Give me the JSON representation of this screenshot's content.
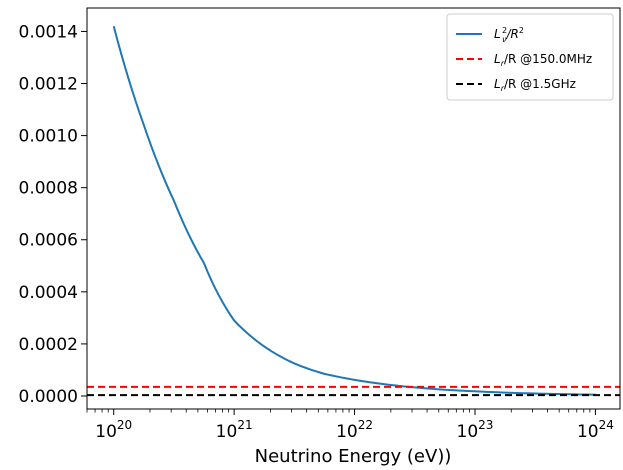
{
  "chart_data": {
    "type": "line",
    "xlabel": "Neutrino Energy (eV))",
    "ylabel": "",
    "xscale": "log",
    "xlim": [
      6e+19,
      1.6e+24
    ],
    "ylim": [
      -5e-05,
      0.00149
    ],
    "grid": false,
    "legend_position": "top-right",
    "x_ticks": [
      {
        "mantissa": "10",
        "exp": "20",
        "value": 1e+20
      },
      {
        "mantissa": "10",
        "exp": "21",
        "value": 1e+21
      },
      {
        "mantissa": "10",
        "exp": "22",
        "value": 1e+22
      },
      {
        "mantissa": "10",
        "exp": "23",
        "value": 1e+23
      },
      {
        "mantissa": "10",
        "exp": "24",
        "value": 1e+24
      }
    ],
    "y_ticks": [
      {
        "label": "0.0000",
        "value": 0.0
      },
      {
        "label": "0.0002",
        "value": 0.0002
      },
      {
        "label": "0.0004",
        "value": 0.0004
      },
      {
        "label": "0.0006",
        "value": 0.0006
      },
      {
        "label": "0.0008",
        "value": 0.0008
      },
      {
        "label": "0.0010",
        "value": 0.001
      },
      {
        "label": "0.0012",
        "value": 0.0012
      },
      {
        "label": "0.0014",
        "value": 0.0014
      }
    ],
    "series": [
      {
        "name": "L_ν²/R²",
        "legend": {
          "base": "L",
          "sub": "ν",
          "sup": "2",
          "rest": "/R",
          "sup2": "2"
        },
        "style": "solid",
        "color": "#1f77b4",
        "x": [
          1e+20,
          1.78e+20,
          3.16e+20,
          5.62e+20,
          1e+21,
          1.78e+21,
          3.16e+21,
          5.62e+21,
          1e+22,
          1.78e+22,
          3.16e+22,
          5.62e+22,
          1e+23,
          1.78e+23,
          3.16e+23,
          5.62e+23,
          1e+24
        ],
        "y": [
          0.00142,
          0.00104,
          0.00075,
          0.00051,
          0.00029,
          0.00019,
          0.000125,
          8.5e-05,
          6.2e-05,
          4.5e-05,
          3.3e-05,
          2.4e-05,
          1.8e-05,
          1.3e-05,
          9.5e-06,
          7e-06,
          5e-06
        ]
      },
      {
        "name": "L_r/R @150.0MHz",
        "legend": {
          "base": "L",
          "sub": "r",
          "rest": "/R @150.0MHz"
        },
        "style": "dashed",
        "color": "#ff0000",
        "x": [
          6e+19,
          1.6e+24
        ],
        "y": [
          3.5e-05,
          3.5e-05
        ]
      },
      {
        "name": "L_r/R @1.5GHz",
        "legend": {
          "base": "L",
          "sub": "r",
          "rest": "/R @1.5GHz"
        },
        "style": "dashed",
        "color": "#000000",
        "x": [
          6e+19,
          1.6e+24
        ],
        "y": [
          3.5e-06,
          3.5e-06
        ]
      }
    ]
  }
}
